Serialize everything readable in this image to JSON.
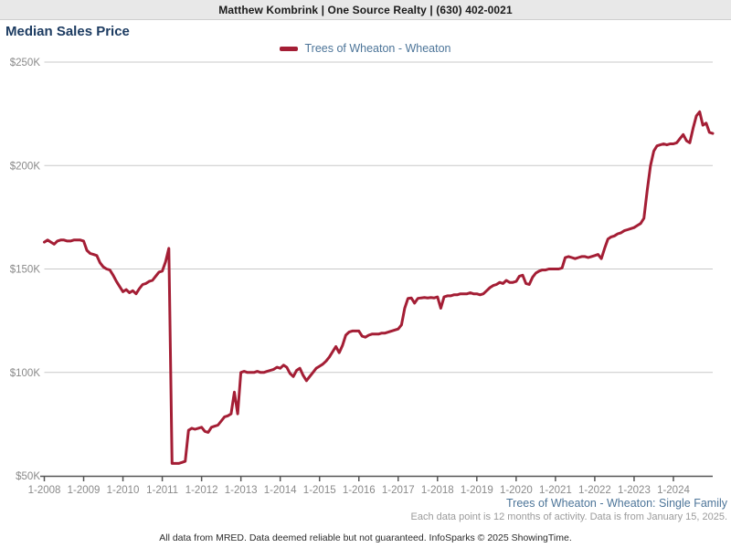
{
  "header": {
    "agent_line": "Matthew Kombrink | One Source Realty | (630) 402-0021"
  },
  "title": "Median Sales Price",
  "legend": {
    "series_label": "Trees of Wheaton - Wheaton",
    "swatch_color": "#A41E35"
  },
  "footer": {
    "series_scope": "Trees of Wheaton - Wheaton: Single Family",
    "data_note": "Each data point is 12 months of activity. Data is from January 15, 2025.",
    "attribution": "All data from MRED. Data deemed reliable but not guaranteed. InfoSparks © 2025 ShowingTime."
  },
  "colors": {
    "series_line": "#A41E35",
    "title_navy": "#1C3B61",
    "legend_footer_blue": "#4D7599",
    "axis_label_gray": "#8A8A8A",
    "gridline_gray": "#C9C9C9",
    "axis_line_gray": "#555555",
    "header_bar_bg": "#E8E8E8",
    "note_gray": "#9B9B9B"
  },
  "chart_data": {
    "type": "line",
    "title": "Median Sales Price",
    "x_unit": "month",
    "x_start": "1-2008",
    "x_end": "1-2025",
    "points_per_year": 12,
    "x_tick_labels": [
      "1-2008",
      "1-2009",
      "1-2010",
      "1-2011",
      "1-2012",
      "1-2013",
      "1-2014",
      "1-2015",
      "1-2016",
      "1-2017",
      "1-2018",
      "1-2019",
      "1-2020",
      "1-2021",
      "1-2022",
      "1-2023",
      "1-2024"
    ],
    "y_ticks": [
      {
        "label": "$50K",
        "value": 50
      },
      {
        "label": "$100K",
        "value": 100
      },
      {
        "label": "$150K",
        "value": 150
      },
      {
        "label": "$200K",
        "value": 200
      },
      {
        "label": "$250K",
        "value": 250
      }
    ],
    "ylim": [
      50,
      250
    ],
    "y_unit": "thousand USD",
    "grid": true,
    "legend_position": "top-center",
    "series": [
      {
        "name": "Trees of Wheaton - Wheaton",
        "color": "#A41E35",
        "values_unit": "thousand USD",
        "values": [
          163,
          164,
          163,
          162,
          163.5,
          164,
          164,
          163.5,
          163.5,
          164,
          164,
          164,
          163.5,
          159,
          157.5,
          157,
          156.5,
          153,
          151,
          150,
          149.5,
          147,
          144,
          141.5,
          139,
          140,
          138.5,
          139.5,
          138,
          140.5,
          142.5,
          143,
          144,
          144.5,
          146.5,
          148.5,
          149,
          153.5,
          160,
          56,
          56,
          56,
          56.5,
          57,
          72,
          73,
          72.5,
          73,
          73.5,
          71.5,
          71,
          73.5,
          74,
          74.5,
          76.5,
          78.5,
          79,
          80,
          90.5,
          80,
          100,
          100.5,
          100,
          100,
          100,
          100.5,
          100,
          100,
          100.5,
          101,
          101.5,
          102.5,
          102,
          103.5,
          102.5,
          99.5,
          98,
          101,
          102,
          98.5,
          96,
          98,
          100,
          102,
          103,
          104,
          105.5,
          107.5,
          110,
          112.5,
          109.5,
          113,
          118,
          119.5,
          120,
          120,
          120,
          117.5,
          117,
          118,
          118.5,
          118.5,
          118.5,
          119,
          119,
          119.5,
          120,
          120.5,
          121,
          123,
          131,
          135.8,
          136,
          133.5,
          135.8,
          136,
          136.2,
          136,
          136.2,
          136,
          136.5,
          131,
          136.5,
          137,
          137,
          137.5,
          137.5,
          138,
          138,
          138,
          138.5,
          138,
          138,
          137.5,
          138,
          139.5,
          141,
          142,
          142.5,
          143.5,
          143,
          144.5,
          143.5,
          143.5,
          144,
          146.5,
          147,
          143,
          142.5,
          146,
          148,
          149,
          149.5,
          149.5,
          150,
          150,
          150,
          150,
          150.5,
          155.5,
          156,
          155.5,
          155,
          155.5,
          156,
          156,
          155.5,
          156,
          156.5,
          157,
          155,
          160,
          164.5,
          165.5,
          166,
          167,
          167.5,
          168.5,
          169,
          169.5,
          170,
          171,
          172,
          174.5,
          188,
          200,
          207,
          209.5,
          210,
          210.5,
          210,
          210.5,
          210.5,
          211,
          213,
          215,
          212,
          211,
          218,
          224,
          226,
          219.5,
          220.5,
          216,
          215.5
        ]
      }
    ]
  }
}
